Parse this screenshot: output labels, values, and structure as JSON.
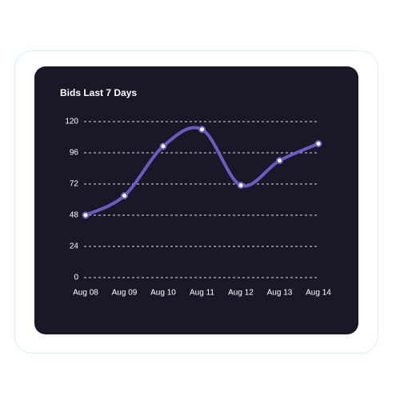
{
  "chart_data": {
    "type": "line",
    "title": "Bids Last 7 Days",
    "categories": [
      "Aug 08",
      "Aug 09",
      "Aug 10",
      "Aug 11",
      "Aug 12",
      "Aug 13",
      "Aug 14"
    ],
    "values": [
      48,
      63,
      101,
      114,
      71,
      90,
      103
    ],
    "color": "#6a5cc4",
    "ylim": [
      0,
      120
    ],
    "yticks": [
      0,
      24,
      48,
      72,
      96,
      120
    ],
    "grid": true
  }
}
